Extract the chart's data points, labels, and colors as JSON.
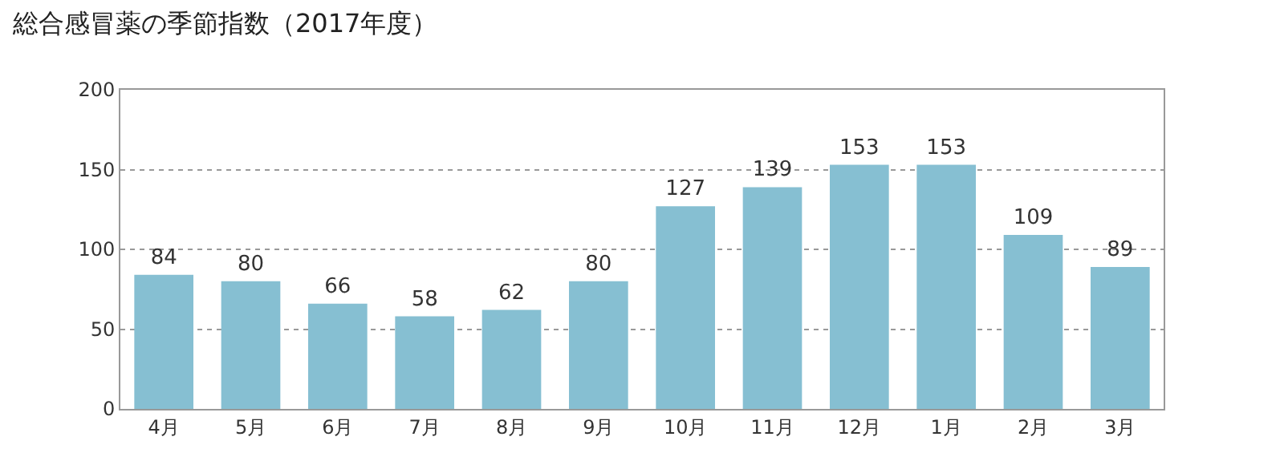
{
  "chart_data": {
    "type": "bar",
    "title": "総合感冒薬の季節指数（2017年度）",
    "categories": [
      "4月",
      "5月",
      "6月",
      "7月",
      "8月",
      "9月",
      "10月",
      "11月",
      "12月",
      "1月",
      "2月",
      "3月"
    ],
    "values": [
      84,
      80,
      66,
      58,
      62,
      80,
      127,
      139,
      153,
      153,
      109,
      89
    ],
    "color": "#86bfd2",
    "ylim": [
      0,
      200
    ],
    "yticks": [
      0,
      50,
      100,
      150,
      200
    ],
    "grid": "y",
    "data_labels": true
  }
}
